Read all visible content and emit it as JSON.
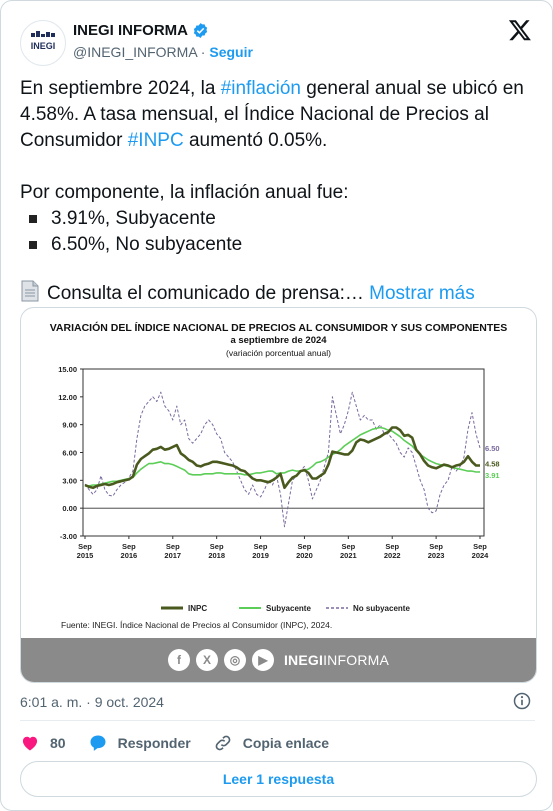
{
  "author": {
    "name": "INEGI INFORMA",
    "handle": "@INEGI_INFORMA",
    "separator": "·",
    "follow_label": "Seguir",
    "avatar_text": "INEGI"
  },
  "tweet": {
    "line1_a": "En septiembre 2024, la ",
    "line1_hash": "#inflación",
    "line1_b": " general anual se ubicó en 4.58%. A tasa mensual, el Índice Nacional de Precios al Consumidor ",
    "line1_hash2": "#INPC",
    "line1_c": " aumentó 0.05%.",
    "component_intro": "Por componente, la inflación anual fue:",
    "bullets": [
      "3.91%, Subyacente",
      "6.50%, No subyacente"
    ],
    "press_text": "Consulta el comunicado de prensa:…",
    "show_more": "Mostrar más"
  },
  "chart_header": {
    "title": "VARIACIÓN DEL ÍNDICE NACIONAL DE PRECIOS AL CONSUMIDOR Y SUS COMPONENTES",
    "subtitle": "a septiembre de 2024",
    "note": "(variación porcentual anual)"
  },
  "chart_data": {
    "type": "line",
    "ylim": [
      -3,
      15
    ],
    "yticks": [
      "15.00",
      "12.00",
      "9.00",
      "6.00",
      "3.00",
      "0.00",
      "-3.00"
    ],
    "xticks": [
      [
        "Sep",
        "2015"
      ],
      [
        "Sep",
        "2016"
      ],
      [
        "Sep",
        "2017"
      ],
      [
        "Sep",
        "2018"
      ],
      [
        "Sep",
        "2019"
      ],
      [
        "Sep",
        "2020"
      ],
      [
        "Sep",
        "2021"
      ],
      [
        "Sep",
        "2022"
      ],
      [
        "Sep",
        "2023"
      ],
      [
        "Sep",
        "2024"
      ]
    ],
    "series": [
      {
        "name": "INPC",
        "color": "#4a5a1e",
        "values": [
          2.5,
          2.3,
          2.2,
          2.4,
          2.5,
          2.6,
          2.5,
          2.6,
          2.8,
          2.9,
          3.0,
          3.1,
          3.4,
          4.7,
          5.3,
          5.6,
          5.9,
          6.3,
          6.4,
          6.6,
          6.3,
          6.4,
          6.6,
          6.8,
          5.9,
          5.6,
          5.2,
          5.0,
          4.6,
          4.5,
          4.7,
          4.8,
          5.0,
          5.0,
          4.9,
          4.8,
          4.7,
          4.6,
          4.4,
          4.1,
          4.0,
          3.6,
          3.2,
          3.0,
          3.0,
          2.9,
          2.8,
          3.0,
          3.3,
          3.7,
          2.2,
          2.8,
          3.3,
          3.5,
          4.0,
          4.1,
          3.8,
          3.2,
          3.2,
          3.5,
          3.8,
          4.7,
          6.1,
          6.0,
          5.9,
          5.8,
          5.8,
          6.2,
          7.1,
          7.4,
          7.3,
          7.1,
          7.3,
          7.5,
          7.7,
          8.0,
          8.2,
          8.7,
          8.7,
          8.4,
          7.8,
          7.9,
          7.6,
          6.3,
          5.8,
          5.1,
          4.6,
          4.4,
          4.3,
          4.5,
          4.7,
          4.6,
          4.4,
          4.6,
          4.7,
          5.0,
          5.6,
          5.0,
          4.6,
          4.6
        ]
      },
      {
        "name": "Subyacente",
        "color": "#5cce57",
        "values": [
          2.4,
          2.4,
          2.5,
          2.5,
          2.6,
          2.7,
          2.8,
          2.9,
          2.9,
          3.0,
          3.1,
          3.2,
          3.3,
          3.8,
          4.2,
          4.5,
          4.8,
          4.8,
          4.9,
          5.0,
          4.8,
          4.8,
          4.7,
          4.5,
          4.3,
          4.1,
          3.7,
          3.6,
          3.6,
          3.6,
          3.7,
          3.7,
          3.7,
          3.8,
          3.8,
          3.7,
          3.7,
          3.7,
          3.7,
          3.7,
          3.6,
          3.6,
          3.7,
          3.8,
          3.8,
          3.9,
          4.0,
          4.0,
          3.7,
          3.8,
          3.8,
          4.0,
          4.1,
          4.0,
          4.0,
          4.1,
          4.2,
          4.5,
          4.9,
          5.0,
          5.2,
          5.5,
          5.8,
          6.0,
          6.3,
          6.7,
          7.0,
          7.3,
          7.6,
          7.9,
          8.1,
          8.3,
          8.5,
          8.6,
          8.7,
          8.6,
          8.4,
          8.3,
          8.0,
          7.7,
          7.3,
          7.0,
          6.7,
          6.2,
          5.8,
          5.5,
          5.2,
          5.0,
          4.8,
          4.7,
          4.6,
          4.5,
          4.4,
          4.3,
          4.2,
          4.1,
          4.0,
          4.0,
          3.9,
          3.91
        ]
      },
      {
        "name": "No subyacente",
        "color": "#7a6a9e",
        "values": [
          2.6,
          2.0,
          1.5,
          2.0,
          3.5,
          2.0,
          1.4,
          1.3,
          2.0,
          2.5,
          2.8,
          3.3,
          4.0,
          7.5,
          10.0,
          11.0,
          11.5,
          12.0,
          11.5,
          12.5,
          11.0,
          10.5,
          9.5,
          11.0,
          9.0,
          9.5,
          7.5,
          7.0,
          7.5,
          8.0,
          9.0,
          9.5,
          9.0,
          8.0,
          7.5,
          6.0,
          5.5,
          5.0,
          4.0,
          3.0,
          2.0,
          1.5,
          2.5,
          1.5,
          1.2,
          2.0,
          3.0,
          2.5,
          3.5,
          1.5,
          -2.0,
          0.5,
          3.0,
          3.5,
          4.0,
          4.5,
          3.0,
          1.0,
          2.0,
          3.0,
          4.5,
          6.0,
          12.0,
          10.0,
          8.0,
          9.0,
          10.5,
          12.5,
          11.0,
          9.5,
          10.0,
          9.5,
          9.5,
          8.5,
          9.0,
          8.0,
          8.0,
          7.5,
          7.0,
          6.0,
          5.5,
          6.5,
          6.0,
          4.5,
          3.0,
          2.0,
          0.0,
          -0.5,
          -0.3,
          1.5,
          2.5,
          3.0,
          4.5,
          4.0,
          4.5,
          5.5,
          8.5,
          10.3,
          8.0,
          6.5
        ]
      }
    ],
    "end_labels": [
      "6.50",
      "4.58",
      "3.91"
    ],
    "legend": [
      "INPC",
      "Subyacente",
      "No subyacente"
    ],
    "legend_placement": "bottom",
    "source": "Fuente: INEGI. Índice Nacional de Precios al Consumidor (INPC), 2024."
  },
  "media_footer": {
    "brand_left": "INEGI",
    "brand_right": "INFORMA"
  },
  "meta": {
    "timestamp": "6:01 a. m. · 9 oct. 2024"
  },
  "actions": {
    "likes": "80",
    "reply_label": "Responder",
    "copy_label": "Copia enlace",
    "read_reply": "Leer 1 respuesta"
  }
}
